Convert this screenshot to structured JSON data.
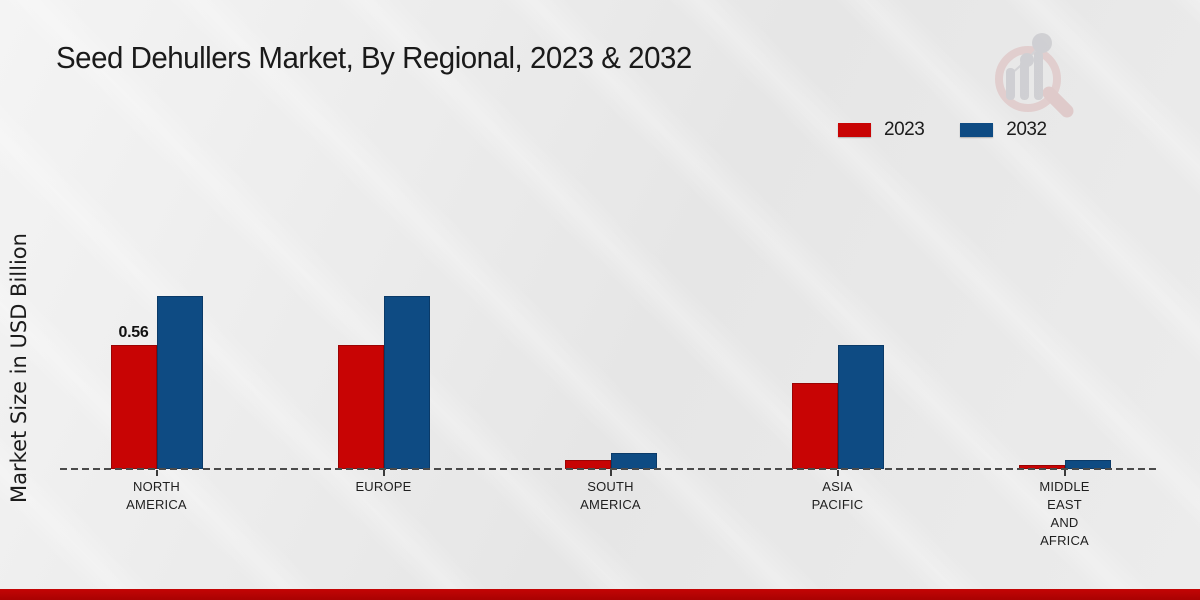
{
  "chart_data": {
    "type": "bar",
    "title": "Seed Dehullers Market, By Regional, 2023 & 2032",
    "ylabel": "Market Size in USD Billion",
    "categories": [
      "NORTH\nAMERICA",
      "EUROPE",
      "SOUTH\nAMERICA",
      "ASIA\nPACIFIC",
      "MIDDLE\nEAST\nAND\nAFRICA"
    ],
    "series": [
      {
        "name": "2023",
        "color": "#c80404",
        "border_color": "#9a0303",
        "values": [
          0.56,
          0.56,
          0.04,
          0.39,
          0.02
        ]
      },
      {
        "name": "2032",
        "color": "#0e4b83",
        "border_color": "#0a3a68",
        "values": [
          0.78,
          0.78,
          0.07,
          0.56,
          0.04
        ]
      }
    ],
    "annotations": [
      {
        "series": 0,
        "category": 0,
        "text": "0.56"
      }
    ],
    "ylim": [
      0,
      0.85
    ],
    "grid": false,
    "axis_style": "dashed-baseline",
    "legend_position": "top-right"
  },
  "watermark": {
    "icon": "market-research-future-logo"
  },
  "colors": {
    "background": "#e9e9e9",
    "footer_bar": "#b30505",
    "axis_dash": "#4a4a4a",
    "text": "#1c1c1c"
  }
}
